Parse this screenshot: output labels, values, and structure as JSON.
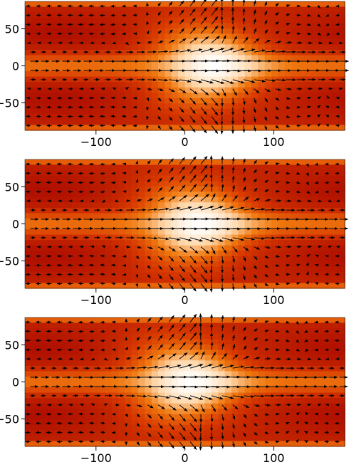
{
  "chart_data": [
    {
      "type": "heatmap",
      "overlay": "quiver",
      "title": "",
      "xlabel": "",
      "ylabel": "",
      "xlim": [
        -180,
        180
      ],
      "ylim": [
        -87,
        87
      ],
      "x_ticks": [
        -100,
        0,
        100
      ],
      "x_tick_labels": [
        "−100",
        "0",
        "100"
      ],
      "y_ticks": [
        -50,
        0,
        50
      ],
      "y_tick_labels": [
        "−50",
        "0",
        "50"
      ],
      "colormap": [
        "#b01000",
        "#d83a00",
        "#f07a10",
        "#ffd6a8",
        "#ffffff"
      ],
      "hot_spot": {
        "lon": 35,
        "lat": 0
      },
      "jet_max_arrow_lon": 180,
      "grid": false
    },
    {
      "type": "heatmap",
      "overlay": "quiver",
      "title": "",
      "xlabel": "",
      "ylabel": "",
      "xlim": [
        -180,
        180
      ],
      "ylim": [
        -87,
        87
      ],
      "x_ticks": [
        -100,
        0,
        100
      ],
      "x_tick_labels": [
        "−100",
        "0",
        "100"
      ],
      "y_ticks": [
        -50,
        0,
        50
      ],
      "y_tick_labels": [
        "−50",
        "0",
        "50"
      ],
      "colormap": [
        "#b01000",
        "#d83a00",
        "#f07a10",
        "#ffd6a8",
        "#ffffff"
      ],
      "hot_spot": {
        "lon": 20,
        "lat": 0
      },
      "jet_max_arrow_lon": 180,
      "grid": false
    },
    {
      "type": "heatmap",
      "overlay": "quiver",
      "title": "",
      "xlabel": "",
      "ylabel": "",
      "xlim": [
        -180,
        180
      ],
      "ylim": [
        -87,
        87
      ],
      "x_ticks": [
        -100,
        0,
        100
      ],
      "x_tick_labels": [
        "−100",
        "0",
        "100"
      ],
      "y_ticks": [
        -50,
        0,
        50
      ],
      "y_tick_labels": [
        "−50",
        "0",
        "50"
      ],
      "colormap": [
        "#b01000",
        "#d83a00",
        "#f07a10",
        "#ffd6a8",
        "#ffffff"
      ],
      "hot_spot": {
        "lon": 10,
        "lat": 0
      },
      "jet_max_arrow_lon": 180,
      "grid": false
    }
  ]
}
